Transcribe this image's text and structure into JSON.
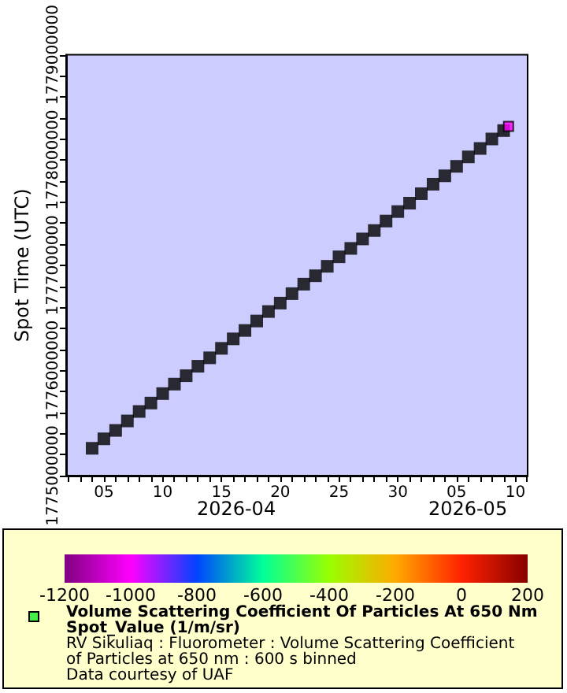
{
  "chart_data": {
    "type": "scatter",
    "ylabel": "Spot Time (UTC)",
    "clabel": "Volume Scattering Coefficient Of Particles At 650 Nm\nSpot_Value (1/m/sr)",
    "annotations": [
      "2026-04",
      "2026-05",
      "RV Sikuliaq : Fluorometer : Volume Scattering Coefficient of Particles at 650 nm : 600 s binned",
      "Data courtesy of UAF"
    ],
    "marker": "square",
    "grid": false,
    "xlim": [
      "2026-04-01T19:00",
      "2026-05-11T01:00"
    ],
    "xticks": [
      {
        "value": "2026-04-02",
        "label": null
      },
      {
        "value": "2026-04-03",
        "label": null
      },
      {
        "value": "2026-04-04",
        "label": null
      },
      {
        "value": "2026-04-05",
        "label": "05"
      },
      {
        "value": "2026-04-06",
        "label": null
      },
      {
        "value": "2026-04-07",
        "label": null
      },
      {
        "value": "2026-04-08",
        "label": null
      },
      {
        "value": "2026-04-09",
        "label": null
      },
      {
        "value": "2026-04-10",
        "label": "10"
      },
      {
        "value": "2026-04-11",
        "label": null
      },
      {
        "value": "2026-04-12",
        "label": null
      },
      {
        "value": "2026-04-13",
        "label": null
      },
      {
        "value": "2026-04-14",
        "label": null
      },
      {
        "value": "2026-04-15",
        "label": "15"
      },
      {
        "value": "2026-04-16",
        "label": null
      },
      {
        "value": "2026-04-17",
        "label": null
      },
      {
        "value": "2026-04-18",
        "label": null
      },
      {
        "value": "2026-04-19",
        "label": null
      },
      {
        "value": "2026-04-20",
        "label": "20"
      },
      {
        "value": "2026-04-21",
        "label": null
      },
      {
        "value": "2026-04-22",
        "label": null
      },
      {
        "value": "2026-04-23",
        "label": null
      },
      {
        "value": "2026-04-24",
        "label": null
      },
      {
        "value": "2026-04-25",
        "label": "25"
      },
      {
        "value": "2026-04-26",
        "label": null
      },
      {
        "value": "2026-04-27",
        "label": null
      },
      {
        "value": "2026-04-28",
        "label": null
      },
      {
        "value": "2026-04-29",
        "label": null
      },
      {
        "value": "2026-04-30",
        "label": "30"
      },
      {
        "value": "2026-05-01",
        "label": null
      },
      {
        "value": "2026-05-02",
        "label": null
      },
      {
        "value": "2026-05-03",
        "label": null
      },
      {
        "value": "2026-05-04",
        "label": null
      },
      {
        "value": "2026-05-05",
        "label": "05"
      },
      {
        "value": "2026-05-06",
        "label": null
      },
      {
        "value": "2026-05-07",
        "label": null
      },
      {
        "value": "2026-05-08",
        "label": null
      },
      {
        "value": "2026-05-09",
        "label": null
      },
      {
        "value": "2026-05-10",
        "label": "10"
      },
      {
        "value": "2026-05-11",
        "label": null
      }
    ],
    "ylim": [
      1775000000,
      1779000000
    ],
    "yticks": [
      1775000000,
      {
        "value": 1775200000,
        "label": null
      },
      {
        "value": 1775400000,
        "label": null
      },
      {
        "value": 1775600000,
        "label": null
      },
      {
        "value": 1775800000,
        "label": null
      },
      1776000000,
      {
        "value": 1776200000,
        "label": null
      },
      {
        "value": 1776400000,
        "label": null
      },
      {
        "value": 1776600000,
        "label": null
      },
      {
        "value": 1776800000,
        "label": null
      },
      1777000000,
      {
        "value": 1777200000,
        "label": null
      },
      {
        "value": 1777400000,
        "label": null
      },
      {
        "value": 1777600000,
        "label": null
      },
      {
        "value": 1777800000,
        "label": null
      },
      1778000000,
      {
        "value": 1778200000,
        "label": null
      },
      {
        "value": 1778400000,
        "label": null
      },
      {
        "value": 1778600000,
        "label": null
      },
      {
        "value": 1778800000,
        "label": null
      },
      1779000000
    ],
    "clim": [
      -1200,
      200
    ],
    "cticks": [
      -1200,
      -1000,
      -800,
      -600,
      -400,
      -200,
      0,
      200
    ],
    "series": [
      {
        "color": "#000000",
        "x": [
          "2026-04-04",
          "2026-04-05",
          "2026-04-06",
          "2026-04-07",
          "2026-04-08",
          "2026-04-09",
          "2026-04-10",
          "2026-04-11",
          "2026-04-12",
          "2026-04-13",
          "2026-04-14",
          "2026-04-15",
          "2026-04-16",
          "2026-04-17",
          "2026-04-18",
          "2026-04-19",
          "2026-04-20",
          "2026-04-21",
          "2026-04-22",
          "2026-04-23",
          "2026-04-24",
          "2026-04-25",
          "2026-04-26",
          "2026-04-27",
          "2026-04-28",
          "2026-04-29",
          "2026-04-30",
          "2026-05-01",
          "2026-05-02",
          "2026-05-03",
          "2026-05-04",
          "2026-05-05",
          "2026-05-06",
          "2026-05-07",
          "2026-05-08",
          "2026-05-09"
        ],
        "values": [
          1775260000,
          1775350000,
          1775430000,
          1775520000,
          1775610000,
          1775690000,
          1775780000,
          1775870000,
          1775950000,
          1776040000,
          1776120000,
          1776210000,
          1776300000,
          1776380000,
          1776470000,
          1776560000,
          1776640000,
          1776730000,
          1776820000,
          1776900000,
          1776990000,
          1777080000,
          1777160000,
          1777250000,
          1777330000,
          1777420000,
          1777510000,
          1777590000,
          1777680000,
          1777770000,
          1777850000,
          1777940000,
          1778030000,
          1778110000,
          1778200000,
          1778280000
        ]
      },
      {
        "x": [
          "2026-05-09T10:00"
        ],
        "values": [
          1778320000
        ],
        "cvalues": [
          -1000
        ]
      }
    ]
  }
}
